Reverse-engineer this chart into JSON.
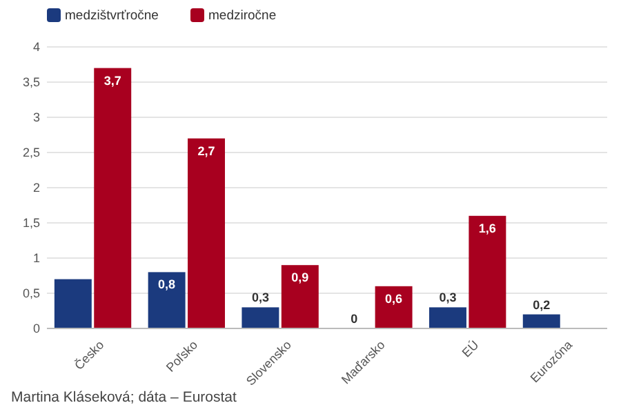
{
  "chart_data": {
    "type": "bar",
    "categories": [
      "Česko",
      "Poľsko",
      "Slovensko",
      "Maďarsko",
      "EÚ",
      "Eurozóna"
    ],
    "series": [
      {
        "name": "medzištvrťročne",
        "color": "#1b3a7e",
        "values": [
          0.7,
          0.8,
          0.3,
          0,
          0.3,
          0.2
        ],
        "value_labels": [
          null,
          "0,8",
          "0,3",
          "0",
          "0,3",
          "0,2"
        ]
      },
      {
        "name": "medziročne",
        "color": "#a8001f",
        "values": [
          3.7,
          2.7,
          0.9,
          0.6,
          1.6,
          null
        ],
        "value_labels": [
          "3,7",
          "2,7",
          "0,9",
          "0,6",
          "1,6",
          null
        ]
      }
    ],
    "ylim": [
      0,
      4
    ],
    "yticks": [
      {
        "value": 0,
        "label": "0"
      },
      {
        "value": 0.5,
        "label": "0,5"
      },
      {
        "value": 1,
        "label": "1"
      },
      {
        "value": 1.5,
        "label": "1,5"
      },
      {
        "value": 2,
        "label": "2"
      },
      {
        "value": 2.5,
        "label": "2,5"
      },
      {
        "value": 3,
        "label": "3"
      },
      {
        "value": 3.5,
        "label": "3,5"
      },
      {
        "value": 4,
        "label": "4"
      }
    ],
    "grid": "y",
    "legend": "top left",
    "annotations": [
      "Martina Kláseková; dáta – Eurostat"
    ]
  }
}
